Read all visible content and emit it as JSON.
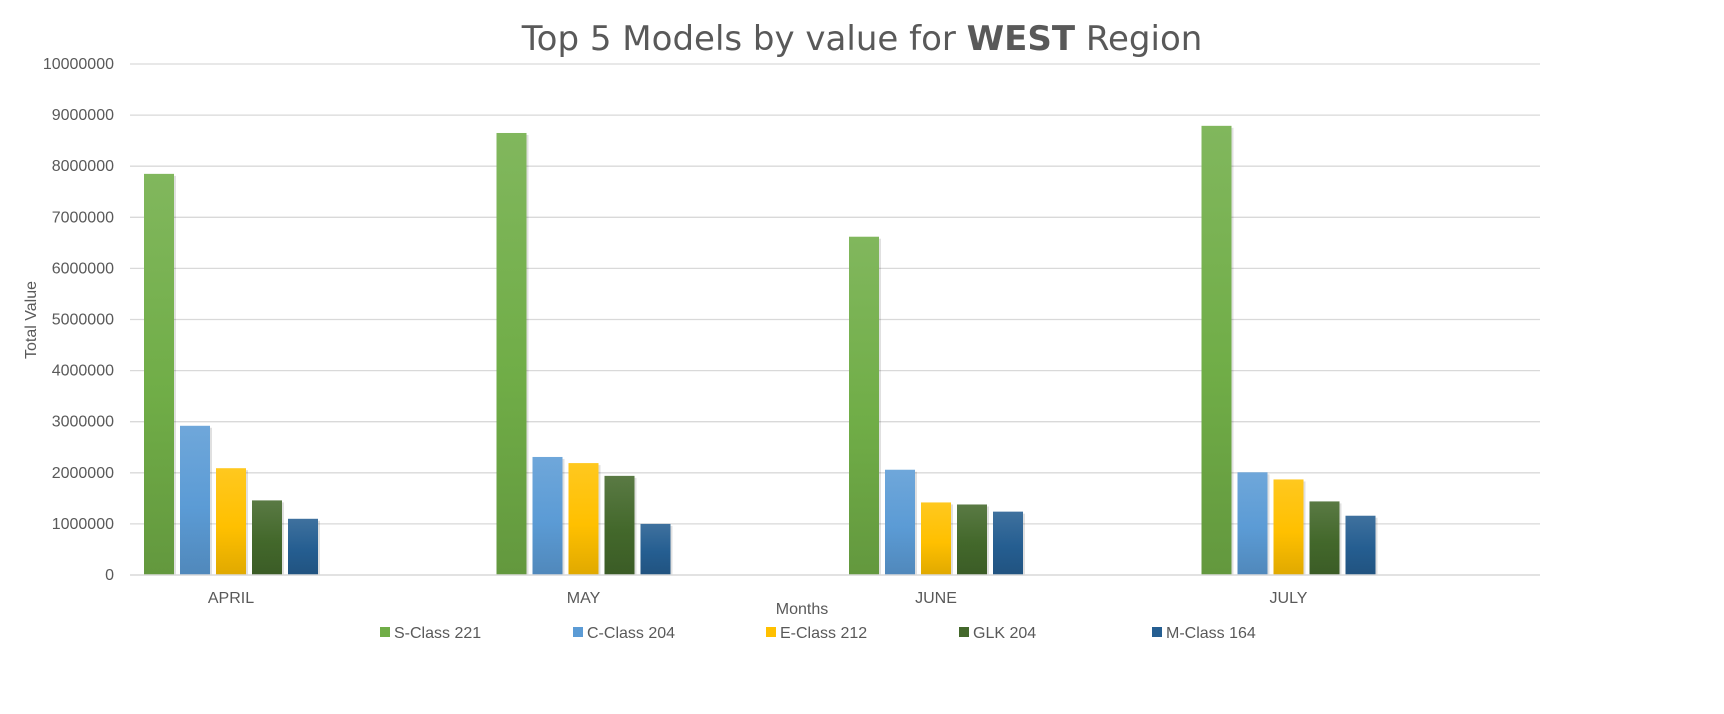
{
  "chart_data": {
    "type": "bar",
    "title": {
      "prefix": "Top 5 Models by value for ",
      "emphasis": "WEST",
      "suffix": " Region"
    },
    "xlabel": "Months",
    "ylabel": "Total Value",
    "categories": [
      "APRIL",
      "MAY",
      "JUNE",
      "JULY"
    ],
    "ylim": [
      0,
      10000000
    ],
    "yticks": [
      0,
      1000000,
      2000000,
      3000000,
      4000000,
      5000000,
      6000000,
      7000000,
      8000000,
      9000000,
      10000000
    ],
    "grid": true,
    "legend_position": "bottom",
    "series": [
      {
        "name": "S-Class 221",
        "color": "#70ad47",
        "values": [
          7850000,
          8650000,
          6620000,
          8790000
        ]
      },
      {
        "name": "C-Class 204",
        "color": "#5b9bd5",
        "values": [
          2920000,
          2310000,
          2060000,
          2010000
        ]
      },
      {
        "name": "E-Class 212",
        "color": "#ffc000",
        "values": [
          2090000,
          2190000,
          1420000,
          1870000
        ]
      },
      {
        "name": "GLK 204",
        "color": "#43682b",
        "values": [
          1460000,
          1940000,
          1380000,
          1440000
        ]
      },
      {
        "name": "M-Class 164",
        "color": "#255e91",
        "values": [
          1100000,
          1000000,
          1240000,
          1160000
        ]
      }
    ]
  }
}
